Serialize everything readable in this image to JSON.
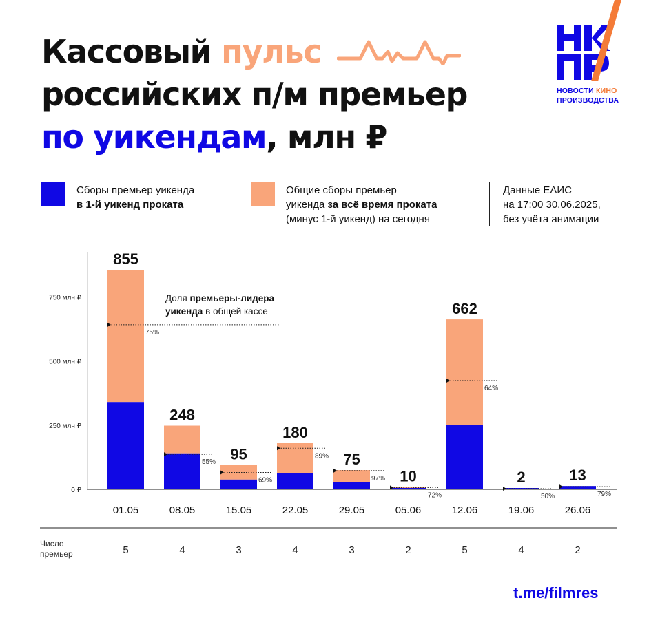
{
  "header": {
    "title_1_black": "Кассовый ",
    "title_1_orange": "пульс",
    "title_2": "российских п/м премьер",
    "title_3_blue": "по уикендам",
    "title_3_rest": ", млн ₽"
  },
  "logo": {
    "caption_line1_a": "НОВОСТИ ",
    "caption_line1_b": "КИНО",
    "caption_line2": "ПРОИЗВОДСТВА"
  },
  "legend": {
    "first": {
      "color": "#1008E4",
      "line1": "Сборы премьер уикенда",
      "line2_bold": "в 1-й уикенд проката"
    },
    "rest": {
      "color": "#F9A57A",
      "line1": "Общие сборы премьер",
      "line2_a": "уикенда ",
      "line2_bold": "за всё время проката",
      "line3": "(минус 1-й уикенд) на сегодня"
    }
  },
  "info": {
    "line1": "Данные ЕАИС",
    "line2": "на 17:00 30.06.2025,",
    "line3": "без учёта анимации"
  },
  "annotation": {
    "line1_a": "Доля ",
    "line1_bold": "премьеры-лидера",
    "line2_bold": "уикенда",
    "line2_b": " в общей кассе"
  },
  "chart_data": {
    "type": "bar",
    "stacked": true,
    "categories": [
      "01.05",
      "08.05",
      "15.05",
      "22.05",
      "29.05",
      "05.06",
      "12.06",
      "19.06",
      "26.06"
    ],
    "series": [
      {
        "color": "#1008E4",
        "values": [
          340,
          140,
          38,
          63,
          27,
          4,
          252,
          1,
          13
        ]
      },
      {
        "color": "#F9A57A",
        "values": [
          515,
          108,
          57,
          117,
          48,
          6,
          410,
          1,
          0
        ]
      }
    ],
    "totals": [
      "855",
      "248",
      "95",
      "180",
      "75",
      "10",
      "662",
      "2",
      "13"
    ],
    "leader_share": [
      75,
      55,
      69,
      89,
      97,
      72,
      64,
      50,
      79
    ],
    "leader_share_labels": [
      "75%",
      "55%",
      "69%",
      "89%",
      "97%",
      "72%",
      "64%",
      "50%",
      "79%"
    ],
    "premiere_count_title": "Число\nпремьер",
    "premiere_counts": [
      "5",
      "4",
      "3",
      "4",
      "3",
      "2",
      "5",
      "4",
      "2"
    ],
    "yticks": [
      0,
      250,
      500,
      750
    ],
    "ytick_labels": [
      "0 ₽",
      "250 млн ₽",
      "500 млн ₽",
      "750 млн ₽"
    ],
    "ylim": [
      0,
      870
    ],
    "grid": false
  },
  "footer": {
    "link": "t.me/filmres"
  }
}
